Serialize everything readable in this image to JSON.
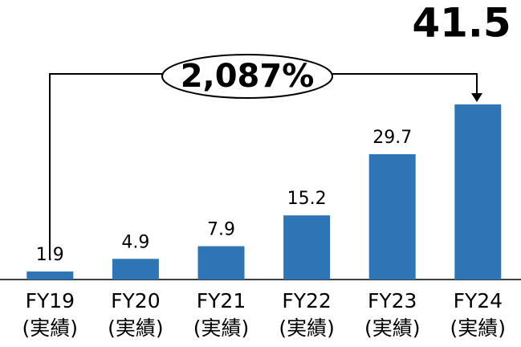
{
  "chart_data": {
    "type": "bar",
    "categories": [
      "FY19",
      "FY20",
      "FY21",
      "FY22",
      "FY23",
      "FY24"
    ],
    "category_sublabels": [
      "(実績)",
      "(実績)",
      "(実績)",
      "(実績)",
      "(実績)",
      "(実績)"
    ],
    "values": [
      1.9,
      4.9,
      7.9,
      15.2,
      29.7,
      41.5
    ],
    "color": "#2e75b6",
    "annotation": "2,087%"
  }
}
